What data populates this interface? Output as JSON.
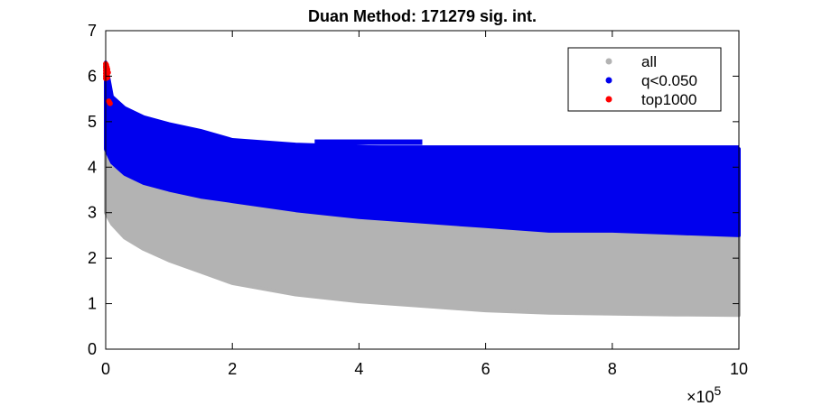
{
  "chart_data": {
    "type": "scatter",
    "title": "Duan Method: 171279 sig. int.",
    "xlabel": "",
    "ylabel": "",
    "xlim": [
      0,
      1000000
    ],
    "ylim": [
      0,
      7
    ],
    "x_ticks": [
      0,
      200000,
      400000,
      600000,
      800000,
      1000000
    ],
    "x_tick_labels": [
      "0",
      "2",
      "4",
      "6",
      "8",
      "10"
    ],
    "x_exponent_label": "×10",
    "x_exponent_power": "5",
    "y_ticks": [
      0,
      1,
      2,
      3,
      4,
      5,
      6,
      7
    ],
    "y_tick_labels": [
      "0",
      "1",
      "2",
      "3",
      "4",
      "5",
      "6",
      "7"
    ],
    "grid": false,
    "legend_position": "top-right",
    "series": [
      {
        "name": "all",
        "color": "#b3b3b3",
        "envelope": {
          "x": [
            0,
            10000,
            30000,
            60000,
            100000,
            150000,
            200000,
            300000,
            400000,
            500000,
            600000,
            700000,
            800000,
            900000,
            1000000
          ],
          "y_low": [
            3.0,
            2.75,
            2.45,
            2.2,
            1.95,
            1.7,
            1.45,
            1.2,
            1.05,
            0.95,
            0.85,
            0.8,
            0.78,
            0.76,
            0.75
          ],
          "y_high": [
            5.6,
            4.9,
            4.3,
            4.0,
            3.7,
            3.5,
            3.35,
            3.1,
            2.95,
            2.8,
            2.7,
            2.65,
            2.6,
            2.55,
            2.5
          ]
        }
      },
      {
        "name": "q<0.050",
        "color": "#0000ee",
        "envelope": {
          "x": [
            0,
            10000,
            30000,
            60000,
            100000,
            150000,
            200000,
            300000,
            400000,
            500000,
            600000,
            700000,
            800000,
            900000,
            1000000
          ],
          "y_low": [
            4.4,
            4.1,
            3.85,
            3.65,
            3.5,
            3.35,
            3.25,
            3.05,
            2.9,
            2.8,
            2.7,
            2.6,
            2.6,
            2.55,
            2.5
          ],
          "y_high": [
            6.3,
            5.55,
            5.3,
            5.1,
            4.95,
            4.8,
            4.6,
            4.5,
            4.45,
            4.4,
            4.4,
            4.4,
            4.4,
            4.4,
            4.4
          ]
        },
        "bands": [
          {
            "x0": 40000,
            "x1": 1000000,
            "y": 4.42
          },
          {
            "x0": 150000,
            "x1": 1000000,
            "y": 4.15
          },
          {
            "x0": 200000,
            "x1": 330000,
            "y": 4.3
          },
          {
            "x0": 330000,
            "x1": 500000,
            "y": 4.55
          }
        ]
      },
      {
        "name": "top1000",
        "color": "#ff0000",
        "points": [
          [
            0,
            6.27
          ],
          [
            0,
            6.22
          ],
          [
            0,
            6.18
          ],
          [
            0,
            6.12
          ],
          [
            0,
            6.06
          ],
          [
            0,
            6.0
          ],
          [
            0,
            5.95
          ],
          [
            1000,
            6.25
          ],
          [
            1000,
            6.1
          ],
          [
            2000,
            6.2
          ],
          [
            2000,
            6.03
          ],
          [
            3000,
            6.15
          ],
          [
            3000,
            5.97
          ],
          [
            4000,
            6.08
          ],
          [
            5000,
            5.45
          ],
          [
            6000,
            5.42
          ],
          [
            7000,
            5.4
          ]
        ]
      }
    ]
  }
}
